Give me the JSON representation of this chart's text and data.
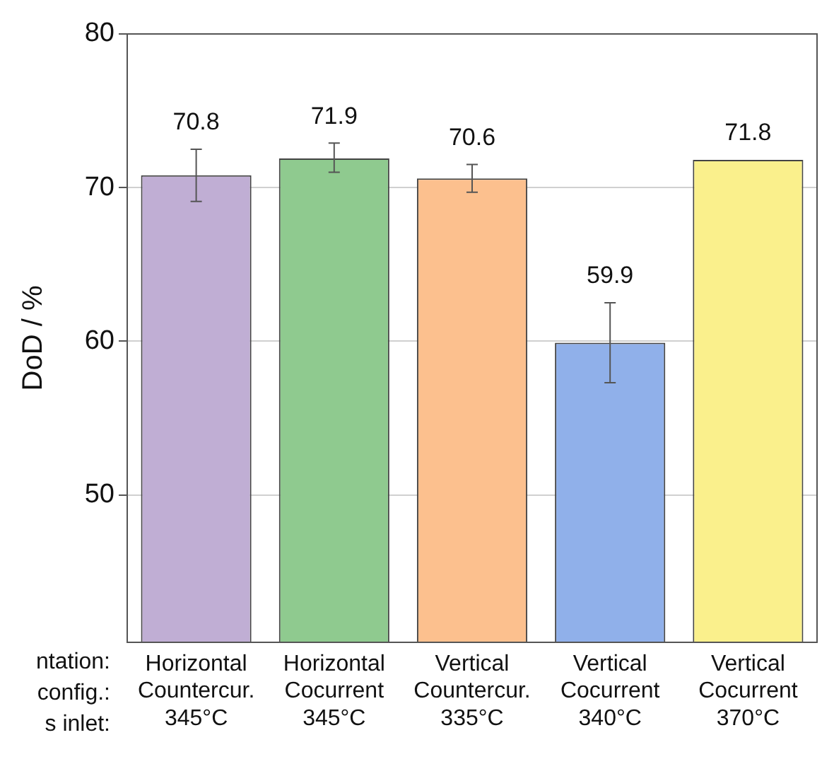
{
  "chart_data": {
    "type": "bar",
    "ylabel": "DoD / %",
    "categories": [
      "Horizontal\nCountercur.\n345°C",
      "Horizontal\nCocurrent\n345°C",
      "Vertical\nCountercur.\n335°C",
      "Vertical\nCocurrent\n340°C",
      "Vertical\nCocurrent\n370°C"
    ],
    "values": [
      70.8,
      71.9,
      70.6,
      59.9,
      71.8
    ],
    "colors": [
      "#c0aed4",
      "#8fca8f",
      "#fcc08e",
      "#90b0ea",
      "#faf08c"
    ],
    "errors": [
      [
        69.1,
        72.5
      ],
      [
        71.0,
        72.9
      ],
      [
        69.7,
        71.5
      ],
      [
        57.3,
        62.5
      ],
      null
    ],
    "data_labels": true,
    "annotations": [
      "ntation:",
      "config.:",
      "s inlet:"
    ],
    "ylim": [
      40.4,
      80
    ],
    "yticks": [
      50,
      60,
      70,
      80
    ],
    "grid": "y",
    "legend": false
  }
}
